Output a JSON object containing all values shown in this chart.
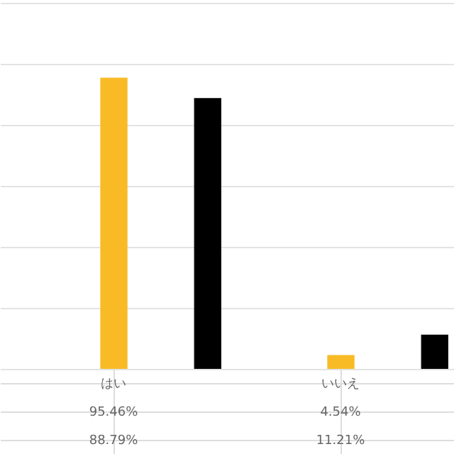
{
  "chart_data": {
    "type": "bar",
    "categories": [
      "はい",
      "いいえ"
    ],
    "series": [
      {
        "color": "#f8bb26",
        "values": [
          95.46,
          4.54
        ],
        "value_labels": [
          "95.46%",
          "4.54%"
        ]
      },
      {
        "color": "#000000",
        "values": [
          88.79,
          11.21
        ],
        "value_labels": [
          "88.79%",
          "11.21%"
        ]
      }
    ],
    "ylim": [
      0,
      120
    ],
    "yticks": [
      {
        "value": 0,
        "label": null
      },
      {
        "value": 20,
        "label": null
      },
      {
        "value": 40,
        "label": null
      },
      {
        "value": 60,
        "label": null
      },
      {
        "value": 80,
        "label": null
      },
      {
        "value": 100,
        "label": null
      },
      {
        "value": 120,
        "label": null
      }
    ],
    "grid": "y",
    "tick_labels": "x"
  }
}
